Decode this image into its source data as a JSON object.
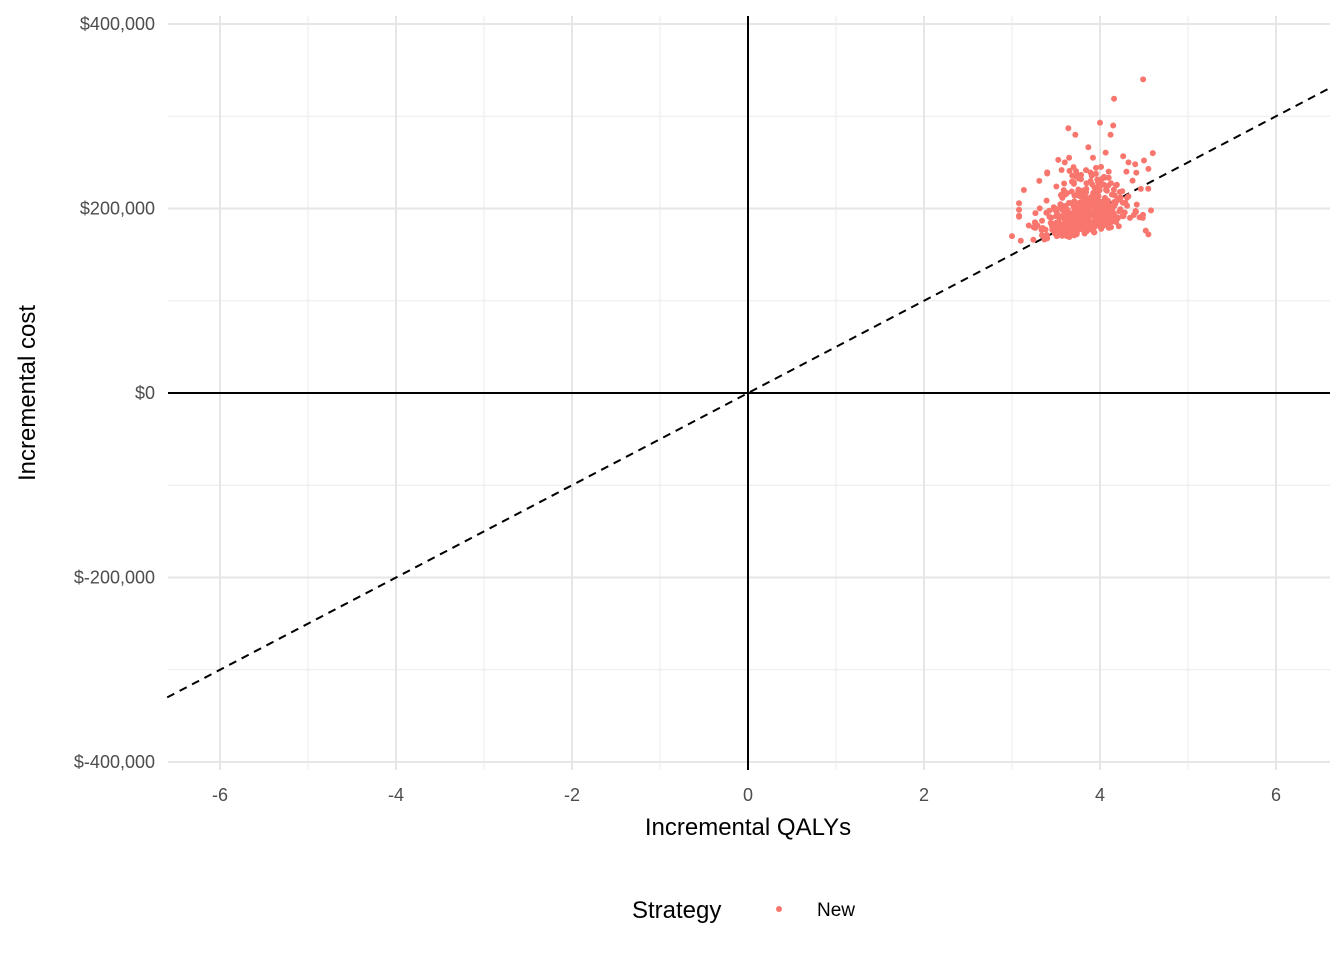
{
  "chart_data": {
    "type": "scatter",
    "title": "",
    "xlabel": "Incremental QALYs",
    "ylabel": "Incremental cost",
    "xlim": [
      -6.6,
      6.6
    ],
    "ylim": [
      -400000,
      400000
    ],
    "x_ticks": [
      -6,
      -4,
      -2,
      0,
      2,
      4,
      6
    ],
    "x_tick_labels": [
      "-6",
      "-4",
      "-2",
      "0",
      "2",
      "4",
      "6"
    ],
    "y_ticks": [
      -400000,
      -200000,
      0,
      200000,
      400000
    ],
    "y_tick_labels": [
      "$-400,000",
      "$-200,000",
      "$0",
      "$200,000",
      "$400,000"
    ],
    "grid": true,
    "reference_lines": [
      {
        "type": "horizontal",
        "y": 0,
        "style": "solid"
      },
      {
        "type": "vertical",
        "x": 0,
        "style": "solid"
      },
      {
        "type": "diagonal",
        "slope": 50000,
        "intercept": 0,
        "style": "dashed"
      }
    ],
    "legend": {
      "title": "Strategy",
      "position": "bottom",
      "entries": [
        {
          "label": "New",
          "color": "#F8766D"
        }
      ]
    },
    "series": [
      {
        "name": "New",
        "color": "#F8766D",
        "n_points": 500,
        "x_range": [
          3.05,
          4.62
        ],
        "y_range": [
          162000,
          340000
        ],
        "x_center": 3.8,
        "y_center": 190000,
        "points": [
          [
            4.49,
            340000
          ],
          [
            4.16,
            319000
          ],
          [
            4.0,
            293000
          ],
          [
            4.15,
            290000
          ],
          [
            3.64,
            287000
          ],
          [
            3.72,
            280000
          ],
          [
            4.12,
            280000
          ],
          [
            4.6,
            260000
          ],
          [
            4.5,
            252000
          ],
          [
            4.4,
            248000
          ],
          [
            3.92,
            255000
          ],
          [
            4.55,
            243000
          ],
          [
            3.31,
            230000
          ],
          [
            3.0,
            170000
          ],
          [
            4.55,
            172000
          ],
          [
            4.52,
            176000
          ],
          [
            3.1,
            165000
          ],
          [
            3.6,
            250000
          ],
          [
            3.4,
            238000
          ],
          [
            4.3,
            240000
          ]
        ]
      }
    ]
  }
}
